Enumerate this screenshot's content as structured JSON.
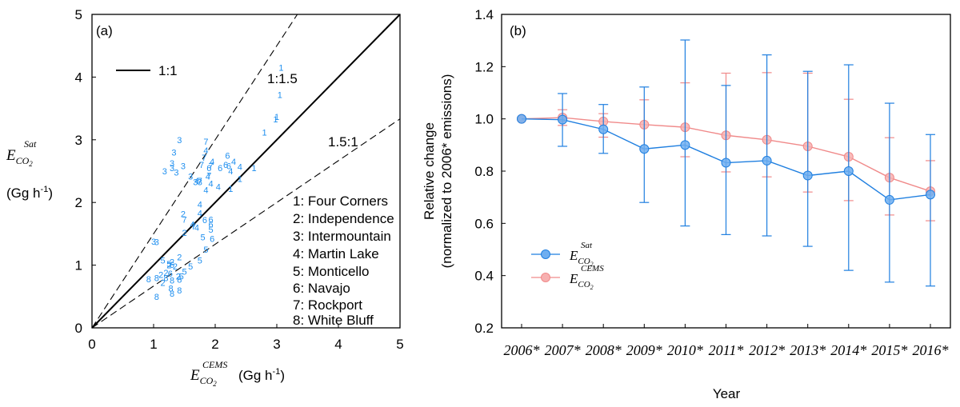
{
  "chart_data": [
    {
      "type": "scatter",
      "panel_label": "(a)",
      "xlabel_symbol": "E",
      "xlabel_sub": "CO",
      "xlabel_sub2": "2",
      "xlabel_sup": "CEMS",
      "xlabel_unit": "(Gg h",
      "xlabel_unit_exp": "-1",
      "xlabel_unit_close": ")",
      "ylabel_symbol": "E",
      "ylabel_sub": "CO",
      "ylabel_sub2": "2",
      "ylabel_sup": "Sat",
      "ylabel_unit": "(Gg h",
      "ylabel_unit_exp": "-1",
      "ylabel_unit_close": ")",
      "xlim": [
        0,
        5
      ],
      "ylim": [
        0,
        5
      ],
      "xticks": [
        "0",
        "1",
        "2",
        "3",
        "4",
        "5"
      ],
      "yticks": [
        "0",
        "1",
        "2",
        "3",
        "4",
        "5"
      ],
      "reference_lines": [
        {
          "label": "1:1",
          "slope": 1,
          "style": "solid"
        },
        {
          "label": "1:1.5",
          "slope": 1.5,
          "style": "dashed"
        },
        {
          "label": "1.5:1",
          "slope": 0.6667,
          "style": "dashed"
        }
      ],
      "legend_line_label": "1:1",
      "legend": [
        "1: Four Corners",
        "2: Independence",
        "3: Intermountain",
        "4: Martin Lake",
        "5: Monticello",
        "6: Navajo",
        "7: Rockport",
        "8: White Bluff"
      ],
      "points": [
        [
          "1",
          3.07,
          4.15
        ],
        [
          "1",
          3.05,
          3.72
        ],
        [
          "1",
          2.98,
          3.33
        ],
        [
          "1",
          3.0,
          3.37
        ],
        [
          "1",
          2.8,
          3.12
        ],
        [
          "1",
          2.63,
          2.55
        ],
        [
          "1",
          2.4,
          2.38
        ],
        [
          "1",
          2.25,
          2.22
        ],
        [
          "2",
          1.48,
          1.82
        ],
        [
          "2",
          1.5,
          1.52
        ],
        [
          "2",
          1.42,
          1.13
        ],
        [
          "2",
          1.3,
          1.05
        ],
        [
          "2",
          1.35,
          0.98
        ],
        [
          "2",
          1.25,
          1.0
        ],
        [
          "2",
          1.2,
          0.88
        ],
        [
          "2",
          1.12,
          0.85
        ],
        [
          "2",
          1.4,
          0.82
        ],
        [
          "2",
          1.15,
          0.72
        ],
        [
          "3",
          1.42,
          3.0
        ],
        [
          "3",
          1.33,
          2.8
        ],
        [
          "3",
          1.3,
          2.63
        ],
        [
          "3",
          1.3,
          2.55
        ],
        [
          "3",
          1.18,
          2.5
        ],
        [
          "3",
          1.48,
          2.58
        ],
        [
          "3",
          1.37,
          2.48
        ],
        [
          "3",
          1.6,
          2.42
        ],
        [
          "3",
          1.68,
          2.33
        ],
        [
          "3",
          1.75,
          2.33
        ],
        [
          "3",
          1.0,
          1.38
        ],
        [
          "3",
          1.05,
          1.37
        ],
        [
          "4",
          1.85,
          2.83
        ],
        [
          "4",
          1.95,
          2.65
        ],
        [
          "4",
          2.3,
          2.65
        ],
        [
          "4",
          2.4,
          2.57
        ],
        [
          "4",
          2.25,
          2.5
        ],
        [
          "4",
          1.88,
          2.42
        ],
        [
          "4",
          1.93,
          2.3
        ],
        [
          "4",
          1.85,
          2.2
        ],
        [
          "4",
          2.05,
          2.25
        ],
        [
          "4",
          1.7,
          2.35
        ],
        [
          "4",
          1.75,
          1.97
        ],
        [
          "4",
          1.75,
          1.83
        ],
        [
          "4",
          1.7,
          1.6
        ],
        [
          "4",
          1.63,
          1.65
        ],
        [
          "5",
          1.93,
          1.57
        ],
        [
          "5",
          1.8,
          1.45
        ],
        [
          "5",
          1.85,
          1.25
        ],
        [
          "5",
          1.75,
          1.08
        ],
        [
          "5",
          1.6,
          0.98
        ],
        [
          "5",
          1.5,
          0.9
        ],
        [
          "5",
          1.45,
          0.82
        ],
        [
          "5",
          1.15,
          1.08
        ],
        [
          "5",
          1.25,
          1.02
        ],
        [
          "6",
          2.2,
          2.75
        ],
        [
          "6",
          2.22,
          2.58
        ],
        [
          "6",
          2.17,
          2.6
        ],
        [
          "6",
          1.9,
          2.55
        ],
        [
          "6",
          2.08,
          2.55
        ],
        [
          "6",
          1.93,
          1.73
        ],
        [
          "6",
          1.93,
          1.65
        ],
        [
          "6",
          1.83,
          1.72
        ],
        [
          "6",
          1.95,
          1.42
        ],
        [
          "6",
          1.3,
          1.01
        ],
        [
          "6",
          1.27,
          0.87
        ],
        [
          "7",
          1.85,
          2.97
        ],
        [
          "7",
          1.82,
          2.72
        ],
        [
          "7",
          1.78,
          2.6
        ],
        [
          "7",
          1.93,
          2.58
        ],
        [
          "7",
          1.9,
          2.43
        ],
        [
          "7",
          1.75,
          2.35
        ],
        [
          "7",
          1.5,
          1.73
        ],
        [
          "7",
          1.65,
          1.62
        ],
        [
          "8",
          0.92,
          0.78
        ],
        [
          "8",
          1.05,
          0.8
        ],
        [
          "8",
          1.2,
          0.8
        ],
        [
          "8",
          1.3,
          0.76
        ],
        [
          "8",
          1.42,
          0.77
        ],
        [
          "8",
          1.28,
          0.63
        ],
        [
          "8",
          1.3,
          0.55
        ],
        [
          "8",
          1.42,
          0.6
        ],
        [
          "8",
          1.05,
          0.5
        ]
      ]
    },
    {
      "type": "line",
      "panel_label": "(b)",
      "title": "",
      "xlabel": "Year",
      "ylabel_line1": "Relative change",
      "ylabel_line2": "(normalized to 2006* emissions)",
      "ylim": [
        0.2,
        1.4
      ],
      "yticks": [
        "0.2",
        "0.4",
        "0.6",
        "0.8",
        "1.0",
        "1.2",
        "1.4"
      ],
      "categories": [
        "2006*",
        "2007*",
        "2008*",
        "2009*",
        "2010*",
        "2011*",
        "2012*",
        "2013*",
        "2014*",
        "2015*",
        "2016*"
      ],
      "series": [
        {
          "name_symbol": "E",
          "name_sub": "CO",
          "name_sub2": "2",
          "name_sup": "Sat",
          "color": "#1f7fe0",
          "values": [
            1.0,
            0.997,
            0.96,
            0.885,
            0.9,
            0.832,
            0.84,
            0.783,
            0.8,
            0.69,
            0.71
          ],
          "err_low": [
            1.0,
            0.895,
            0.868,
            0.68,
            0.59,
            0.557,
            0.552,
            0.512,
            0.42,
            0.375,
            0.36
          ],
          "err_high": [
            1.0,
            1.097,
            1.055,
            1.122,
            1.302,
            1.128,
            1.245,
            1.182,
            1.207,
            1.06,
            0.94
          ]
        },
        {
          "name_symbol": "E",
          "name_sub": "CO",
          "name_sub2": "2",
          "name_sup": "CEMS",
          "color": "#f08a8a",
          "values": [
            1.0,
            1.005,
            0.99,
            0.978,
            0.968,
            0.937,
            0.92,
            0.895,
            0.855,
            0.775,
            0.723
          ],
          "err_low": [
            1.0,
            0.975,
            0.93,
            0.885,
            0.855,
            0.797,
            0.778,
            0.72,
            0.687,
            0.632,
            0.61
          ],
          "err_high": [
            1.0,
            1.035,
            1.02,
            1.073,
            1.138,
            1.175,
            1.177,
            1.175,
            1.075,
            0.928,
            0.84
          ]
        }
      ]
    }
  ]
}
